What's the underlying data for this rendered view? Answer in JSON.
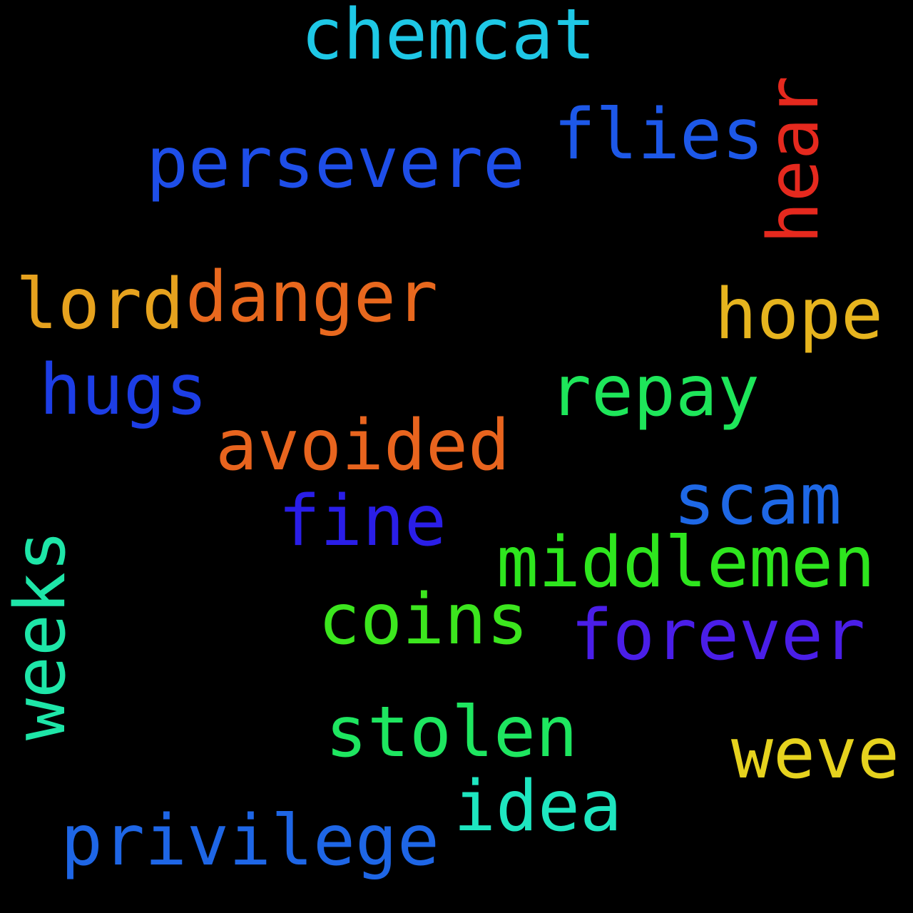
{
  "words": {
    "chemcat": {
      "text": "chemcat",
      "color": "#1ec8e6"
    },
    "persevere": {
      "text": "persevere",
      "color": "#1e4ee8"
    },
    "flies": {
      "text": "flies",
      "color": "#1d58e8"
    },
    "hear": {
      "text": "hear",
      "color": "#e5291e"
    },
    "lord": {
      "text": "lord",
      "color": "#e6a21e"
    },
    "danger": {
      "text": "danger",
      "color": "#e8681e"
    },
    "hope": {
      "text": "hope",
      "color": "#e6b41e"
    },
    "hugs": {
      "text": "hugs",
      "color": "#1d3ee6"
    },
    "repay": {
      "text": "repay",
      "color": "#1ee65a"
    },
    "avoided": {
      "text": "avoided",
      "color": "#e8641e"
    },
    "scam": {
      "text": "scam",
      "color": "#1e68e6"
    },
    "fine": {
      "text": "fine",
      "color": "#2a1ee8"
    },
    "middlemen": {
      "text": "middlemen",
      "color": "#2ee61e"
    },
    "weeks": {
      "text": "weeks",
      "color": "#1ee6a8"
    },
    "coins": {
      "text": "coins",
      "color": "#3ce61e"
    },
    "forever": {
      "text": "forever",
      "color": "#4a1ee8"
    },
    "stolen": {
      "text": "stolen",
      "color": "#1ee660"
    },
    "weve": {
      "text": "weve",
      "color": "#e6d21e"
    },
    "idea": {
      "text": "idea",
      "color": "#1ee6c0"
    },
    "privilege": {
      "text": "privilege",
      "color": "#1e66e6"
    }
  }
}
